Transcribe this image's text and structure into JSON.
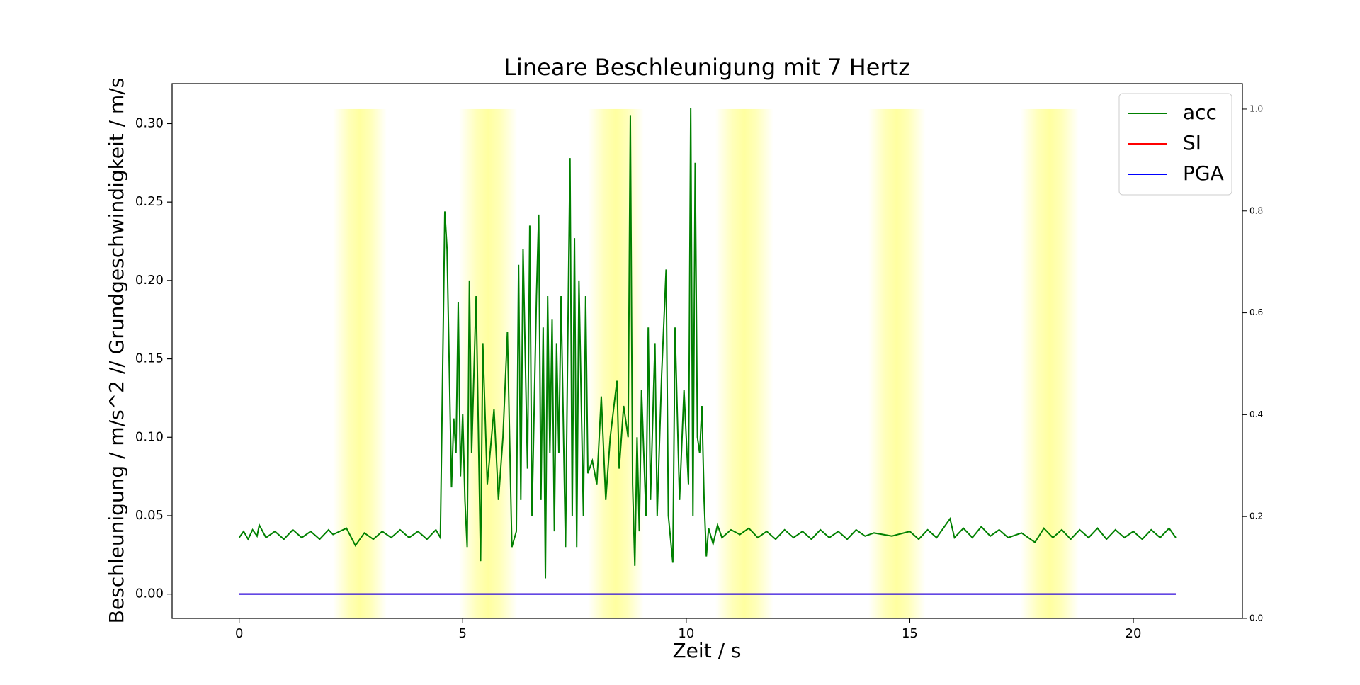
{
  "chart_data": {
    "type": "line",
    "title": "Lineare Beschleunigung mit 7 Hertz",
    "xlabel": "Zeit / s",
    "ylabel": "Beschleunigung / m/s^2 // Grundgeschwindigkeit / m/s",
    "xlim": [
      -1.5,
      22.44
    ],
    "xticks": [
      0,
      5,
      10,
      15,
      20
    ],
    "ylim": [
      -0.0155,
      0.3255
    ],
    "yticks": [
      {
        "value": 0,
        "label": "0.00"
      },
      {
        "value": 0.05,
        "label": "0.05"
      },
      {
        "value": 0.1,
        "label": "0.10"
      },
      {
        "value": 0.15,
        "label": "0.15"
      },
      {
        "value": 0.2,
        "label": "0.20"
      },
      {
        "value": 0.25,
        "label": "0.25"
      },
      {
        "value": 0.3,
        "label": "0.30"
      }
    ],
    "y2lim": [
      0,
      1.05
    ],
    "y2ticks": [
      {
        "value": 0,
        "label": "0.0"
      },
      0.2,
      0.4,
      0.6,
      0.8,
      {
        "value": 1,
        "label": "1.0"
      }
    ],
    "spans": [
      [
        2.1,
        3.3
      ],
      [
        4.92,
        6.22
      ],
      [
        7.8,
        9.05
      ],
      [
        10.65,
        11.95
      ],
      [
        14.07,
        15.35
      ],
      [
        17.48,
        18.78
      ]
    ],
    "span_color": "#ffff80",
    "span_y2": [
      0,
      1
    ],
    "legend": "upper right",
    "series": [
      {
        "name": "acc",
        "color": "#008000",
        "x": [
          0,
          0.1,
          0.2,
          0.3,
          0.4,
          0.45,
          0.6,
          0.8,
          1.0,
          1.2,
          1.4,
          1.6,
          1.8,
          2.0,
          2.1,
          2.4,
          2.6,
          2.8,
          3.0,
          3.2,
          3.4,
          3.6,
          3.8,
          4.0,
          4.2,
          4.4,
          4.5,
          4.6,
          4.65,
          4.75,
          4.8,
          4.85,
          4.9,
          4.95,
          5.0,
          5.05,
          5.1,
          5.15,
          5.2,
          5.3,
          5.4,
          5.45,
          5.55,
          5.7,
          5.8,
          5.9,
          6.0,
          6.1,
          6.2,
          6.25,
          6.3,
          6.35,
          6.45,
          6.5,
          6.55,
          6.65,
          6.7,
          6.75,
          6.8,
          6.85,
          6.9,
          6.95,
          7.0,
          7.05,
          7.1,
          7.15,
          7.2,
          7.3,
          7.35,
          7.4,
          7.45,
          7.5,
          7.55,
          7.6,
          7.7,
          7.75,
          7.8,
          7.9,
          8.0,
          8.1,
          8.2,
          8.3,
          8.45,
          8.5,
          8.6,
          8.7,
          8.75,
          8.8,
          8.85,
          8.9,
          8.95,
          9.0,
          9.1,
          9.15,
          9.2,
          9.3,
          9.35,
          9.45,
          9.55,
          9.6,
          9.7,
          9.75,
          9.85,
          9.95,
          10.05,
          10.1,
          10.15,
          10.2,
          10.25,
          10.3,
          10.35,
          10.4,
          10.45,
          10.5,
          10.6,
          10.7,
          10.8,
          11.0,
          11.2,
          11.4,
          11.6,
          11.8,
          12.0,
          12.2,
          12.4,
          12.6,
          12.8,
          13.0,
          13.2,
          13.4,
          13.6,
          13.8,
          14.0,
          14.2,
          14.6,
          15.0,
          15.2,
          15.4,
          15.6,
          15.9,
          16.0,
          16.2,
          16.4,
          16.6,
          16.8,
          17.0,
          17.2,
          17.5,
          17.8,
          18.0,
          18.2,
          18.4,
          18.6,
          18.8,
          19.0,
          19.2,
          19.4,
          19.6,
          19.8,
          20.0,
          20.2,
          20.4,
          20.6,
          20.8,
          20.95
        ],
        "values": [
          0.036,
          0.04,
          0.035,
          0.041,
          0.037,
          0.044,
          0.036,
          0.04,
          0.035,
          0.041,
          0.036,
          0.04,
          0.035,
          0.041,
          0.038,
          0.042,
          0.031,
          0.039,
          0.035,
          0.04,
          0.036,
          0.041,
          0.036,
          0.04,
          0.035,
          0.041,
          0.036,
          0.244,
          0.22,
          0.068,
          0.112,
          0.09,
          0.186,
          0.075,
          0.115,
          0.06,
          0.03,
          0.2,
          0.09,
          0.19,
          0.021,
          0.16,
          0.07,
          0.118,
          0.06,
          0.1,
          0.167,
          0.03,
          0.04,
          0.21,
          0.06,
          0.22,
          0.08,
          0.235,
          0.05,
          0.19,
          0.242,
          0.06,
          0.17,
          0.01,
          0.19,
          0.09,
          0.175,
          0.04,
          0.16,
          0.09,
          0.19,
          0.03,
          0.16,
          0.278,
          0.05,
          0.227,
          0.03,
          0.2,
          0.05,
          0.19,
          0.077,
          0.085,
          0.07,
          0.126,
          0.06,
          0.1,
          0.136,
          0.08,
          0.12,
          0.1,
          0.305,
          0.07,
          0.018,
          0.1,
          0.04,
          0.13,
          0.05,
          0.17,
          0.06,
          0.16,
          0.05,
          0.14,
          0.207,
          0.05,
          0.02,
          0.17,
          0.06,
          0.13,
          0.07,
          0.31,
          0.05,
          0.275,
          0.1,
          0.09,
          0.12,
          0.06,
          0.024,
          0.042,
          0.032,
          0.044,
          0.036,
          0.041,
          0.038,
          0.042,
          0.036,
          0.04,
          0.035,
          0.041,
          0.036,
          0.04,
          0.035,
          0.041,
          0.036,
          0.04,
          0.035,
          0.041,
          0.037,
          0.039,
          0.037,
          0.04,
          0.035,
          0.041,
          0.036,
          0.048,
          0.036,
          0.042,
          0.036,
          0.043,
          0.037,
          0.041,
          0.036,
          0.039,
          0.033,
          0.042,
          0.036,
          0.041,
          0.035,
          0.041,
          0.036,
          0.042,
          0.035,
          0.041,
          0.036,
          0.04,
          0.035,
          0.041,
          0.036,
          0.042,
          0.036
        ]
      },
      {
        "name": "SI",
        "color": "#ff0000",
        "x": [
          0,
          20.95
        ],
        "values": [
          0,
          0
        ]
      },
      {
        "name": "PGA",
        "color": "#0000ff",
        "x": [
          0,
          20.95
        ],
        "values": [
          0,
          0
        ]
      }
    ]
  }
}
